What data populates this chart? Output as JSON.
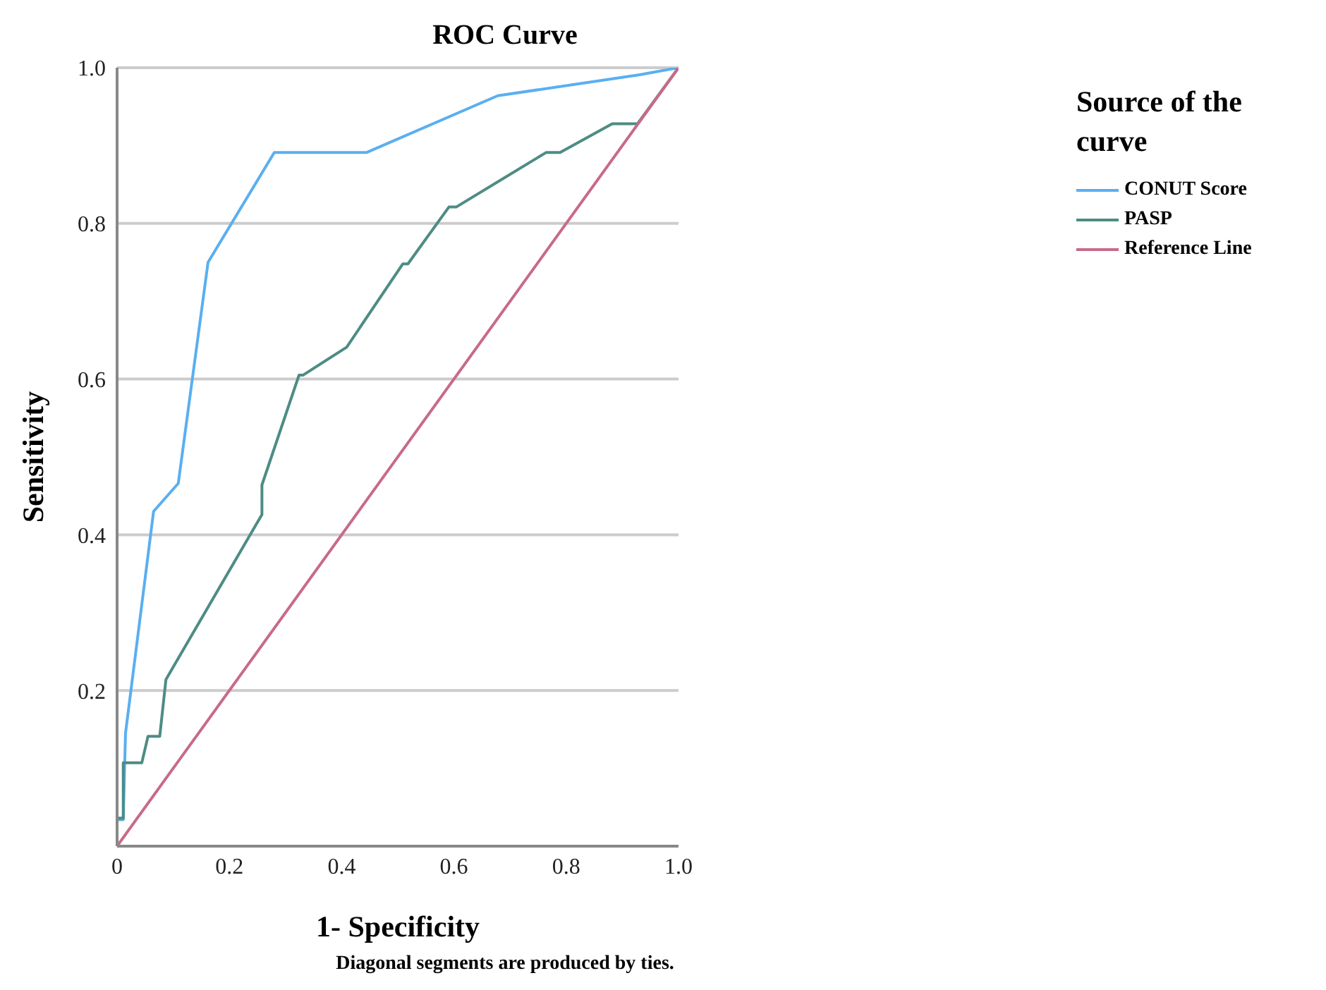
{
  "chart_data": {
    "type": "line",
    "title": "ROC Curve",
    "xlabel": "1- Specificity",
    "ylabel": "Sensitivity",
    "legend_title": "Source of the curve",
    "legend": "top right",
    "grid": "y",
    "marker": "none",
    "line_style": "solid",
    "xlim": [
      0,
      1
    ],
    "ylim": [
      0,
      1
    ],
    "xticks": [
      0,
      0.2,
      0.4,
      0.6,
      0.8,
      {
        "value": 1,
        "label": "1.0"
      }
    ],
    "yticks": [
      {
        "value": 0,
        "label": null
      },
      0.2,
      0.4,
      0.6,
      0.8,
      {
        "value": 1,
        "label": "1.0"
      }
    ],
    "series": [
      {
        "name": "CONUT Score",
        "color": "#5aaff0",
        "x": [
          0,
          0,
          0.011,
          0.015,
          0.065,
          0.109,
          0.162,
          0.28,
          0.444,
          0.678,
          0.931,
          1
        ],
        "values": [
          0,
          0.034,
          0.034,
          0.145,
          0.43,
          0.466,
          0.75,
          0.891,
          0.891,
          0.964,
          0.991,
          1
        ]
      },
      {
        "name": "PASP",
        "color": "#4d8c84",
        "x": [
          0,
          0,
          0.011,
          0.011,
          0.044,
          0.055,
          0.076,
          0.087,
          0.258,
          0.258,
          0.324,
          0.331,
          0.409,
          0.509,
          0.518,
          0.591,
          0.604,
          0.764,
          0.789,
          0.882,
          0.927,
          1
        ],
        "values": [
          0,
          0.036,
          0.036,
          0.107,
          0.107,
          0.141,
          0.141,
          0.214,
          0.426,
          0.464,
          0.605,
          0.605,
          0.641,
          0.748,
          0.748,
          0.821,
          0.821,
          0.891,
          0.891,
          0.928,
          0.928,
          1
        ]
      },
      {
        "name": "Reference Line",
        "color": "#c86a8a",
        "x": [
          0,
          1
        ],
        "values": [
          0,
          1
        ]
      }
    ],
    "annotations": [
      "Diagonal segments are produced by ties."
    ]
  }
}
